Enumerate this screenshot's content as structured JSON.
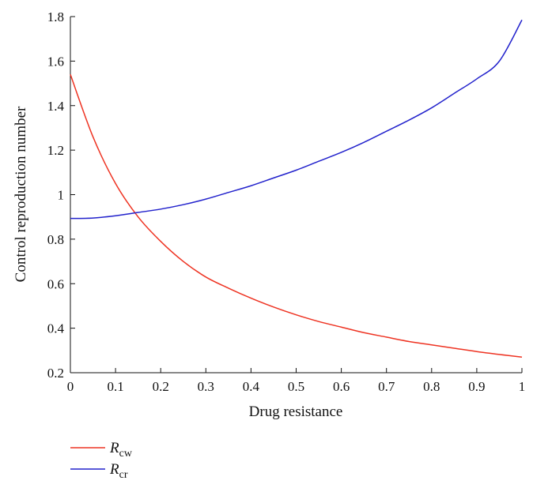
{
  "chart_data": {
    "type": "line",
    "title": "",
    "xlabel": "Drug resistance",
    "ylabel": "Control reproduction number",
    "xlim": [
      0,
      1
    ],
    "ylim": [
      0.2,
      1.8
    ],
    "x_ticks": [
      "0",
      "0.1",
      "0.2",
      "0.3",
      "0.4",
      "0.5",
      "0.6",
      "0.7",
      "0.8",
      "0.9",
      "1"
    ],
    "y_ticks": [
      "0.2",
      "0.4",
      "0.6",
      "0.8",
      "1",
      "1.2",
      "1.4",
      "1.6",
      "1.8"
    ],
    "grid": false,
    "legend_position": "below-left",
    "x": [
      0,
      0.05,
      0.1,
      0.15,
      0.2,
      0.25,
      0.3,
      0.35,
      0.4,
      0.45,
      0.5,
      0.55,
      0.6,
      0.65,
      0.7,
      0.75,
      0.8,
      0.85,
      0.9,
      0.95,
      1.0
    ],
    "series": [
      {
        "legend_main": "R",
        "legend_sub": "cw",
        "color": "#ee3322",
        "values": [
          1.54,
          1.26,
          1.05,
          0.9,
          0.79,
          0.7,
          0.63,
          0.58,
          0.535,
          0.495,
          0.46,
          0.43,
          0.405,
          0.38,
          0.36,
          0.34,
          0.325,
          0.31,
          0.295,
          0.282,
          0.27
        ]
      },
      {
        "legend_main": "R",
        "legend_sub": "cr",
        "color": "#2222cc",
        "values": [
          0.893,
          0.895,
          0.905,
          0.92,
          0.935,
          0.955,
          0.98,
          1.01,
          1.04,
          1.075,
          1.11,
          1.15,
          1.19,
          1.235,
          1.285,
          1.335,
          1.39,
          1.455,
          1.52,
          1.6,
          1.785
        ]
      }
    ]
  }
}
